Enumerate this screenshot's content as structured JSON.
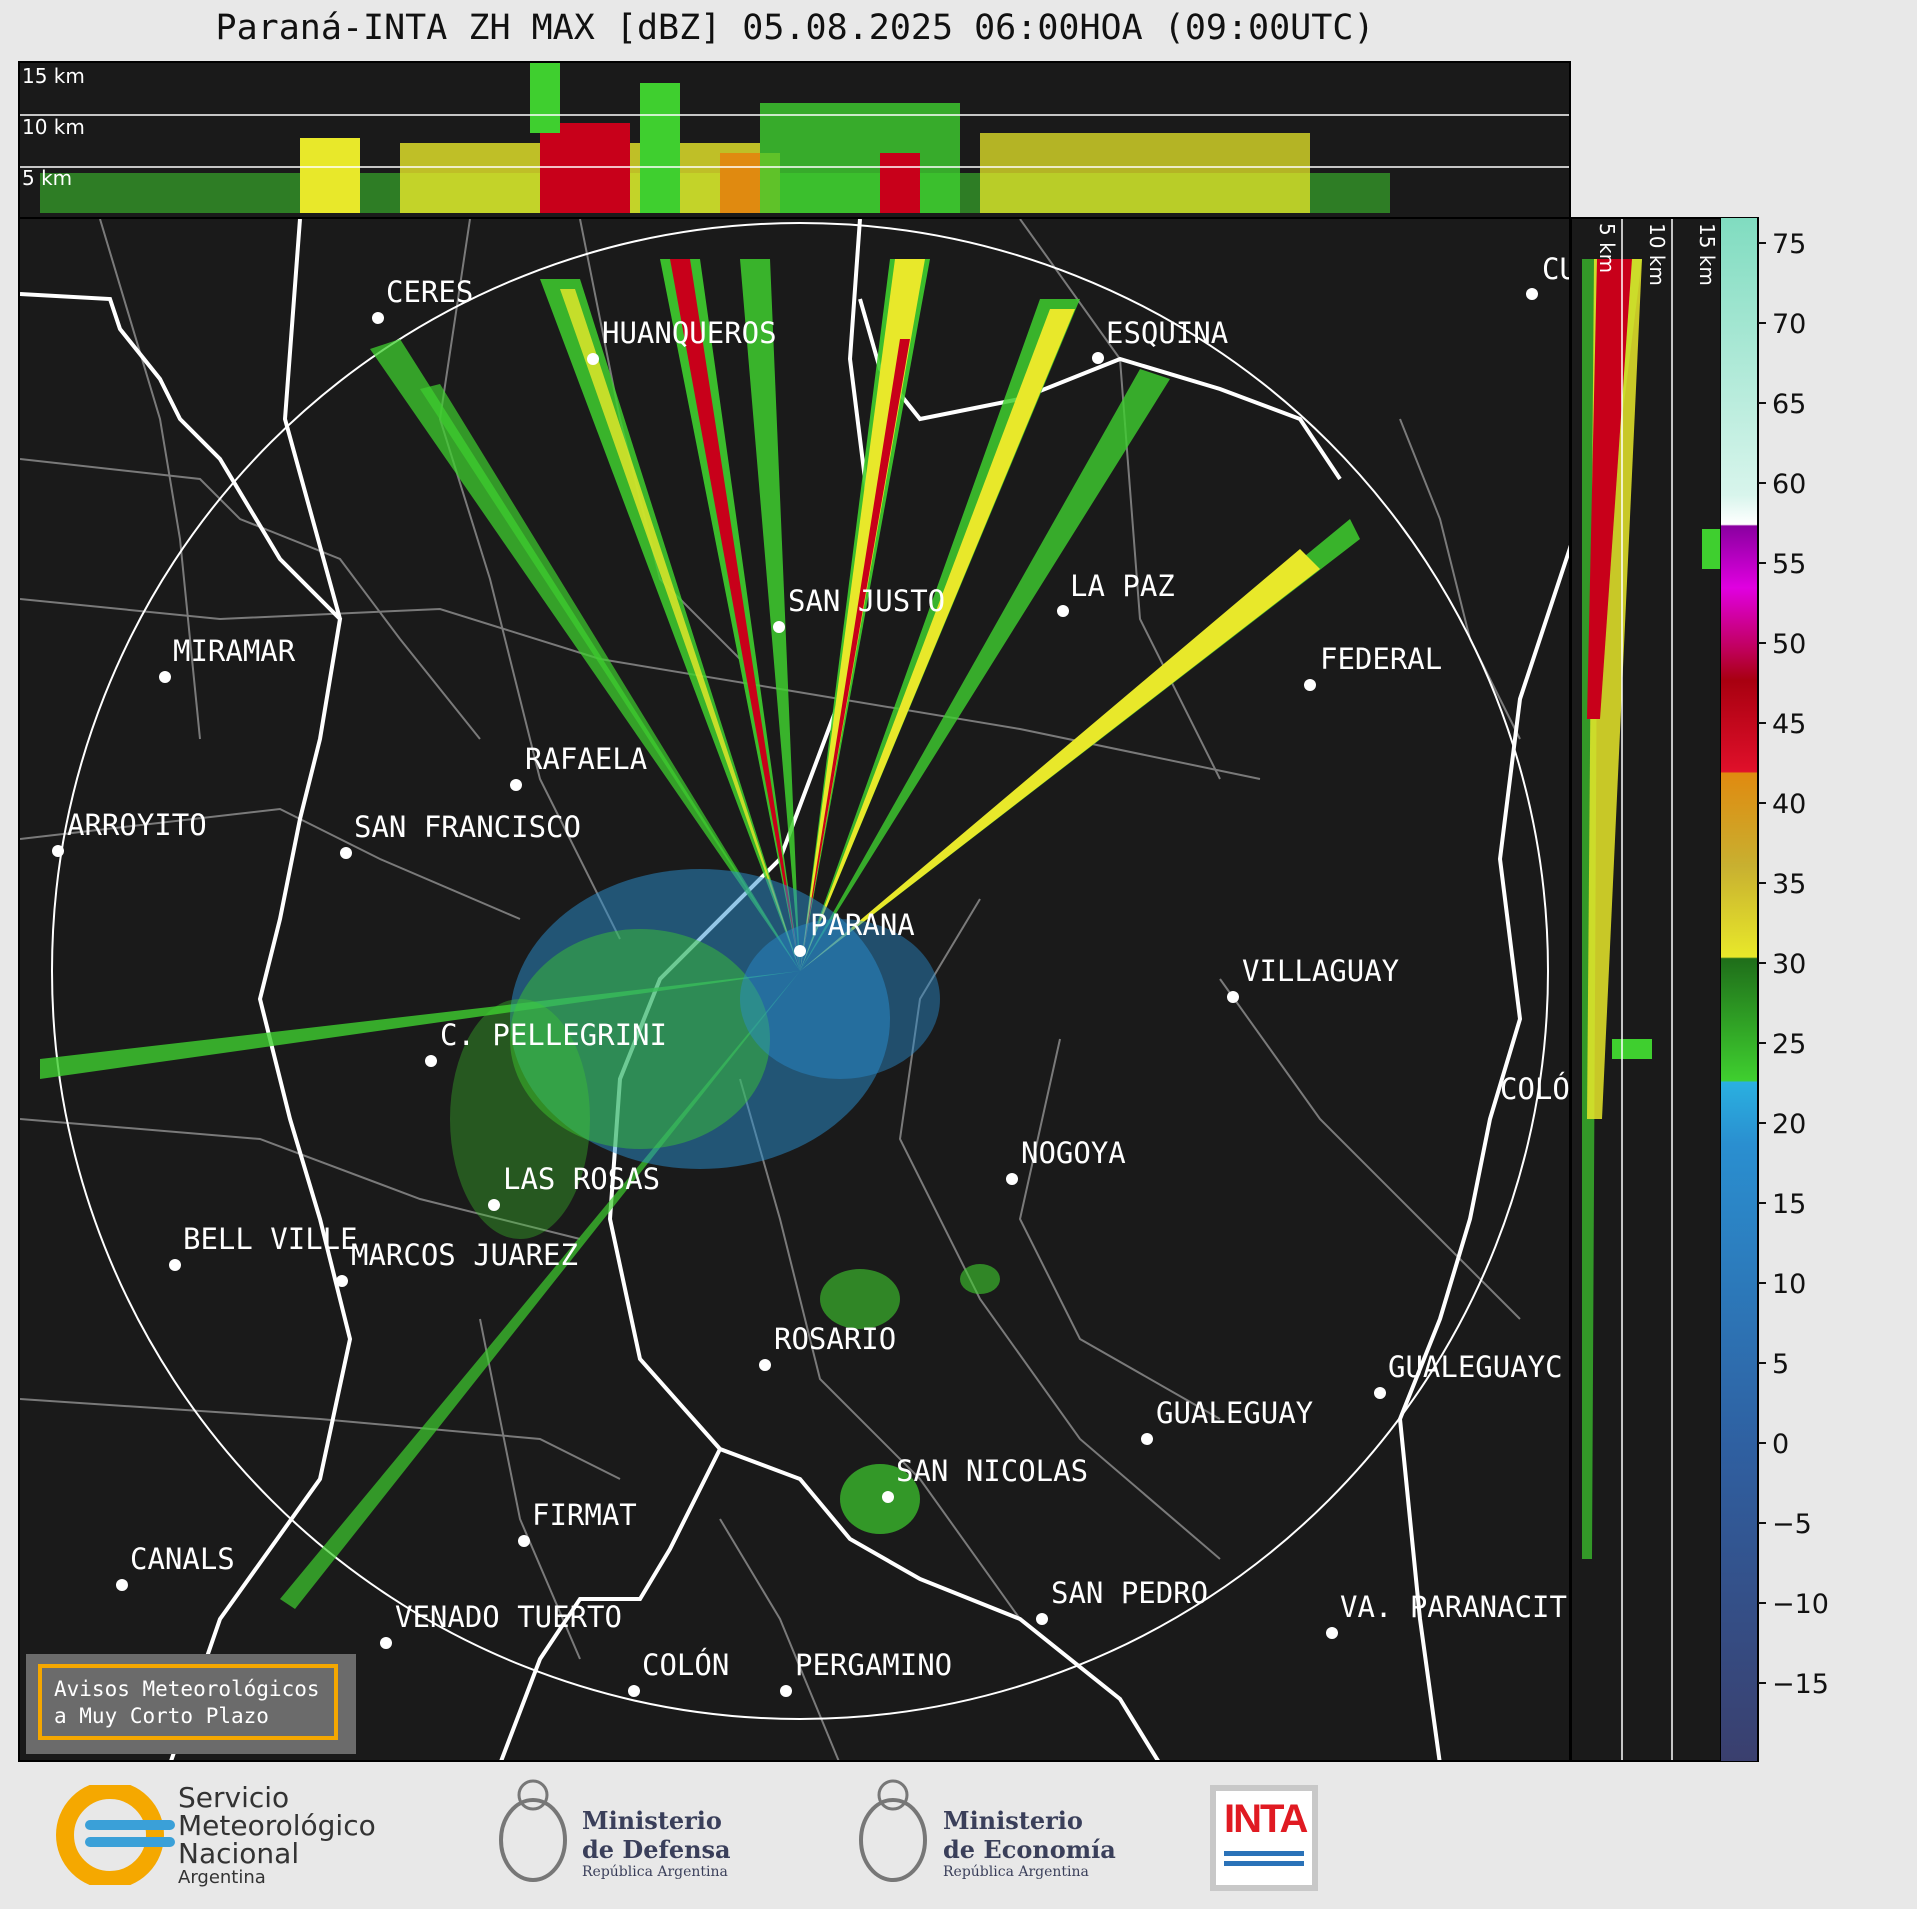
{
  "title": "Paraná-INTA ZH MAX [dBZ] 05.08.2025 06:00HOA (09:00UTC)",
  "top_panel": {
    "altitudes": [
      "15 km",
      "10 km",
      "5 km"
    ]
  },
  "side_panel": {
    "altitudes": [
      "5 km",
      "10 km",
      "15 km"
    ]
  },
  "cities": [
    {
      "name": "CERES"
    },
    {
      "name": "HUANQUEROS"
    },
    {
      "name": "ESQUINA"
    },
    {
      "name": "SAN JUSTO"
    },
    {
      "name": "LA PAZ"
    },
    {
      "name": "MIRAMAR"
    },
    {
      "name": "FEDERAL"
    },
    {
      "name": "RAFAELA"
    },
    {
      "name": "ARROYITO"
    },
    {
      "name": "SAN FRANCISCO"
    },
    {
      "name": "PARANA"
    },
    {
      "name": "VILLAGUAY"
    },
    {
      "name": "C. PELLEGRINI"
    },
    {
      "name": "COLÓ"
    },
    {
      "name": "NOGOYA"
    },
    {
      "name": "LAS ROSAS"
    },
    {
      "name": "BELL VILLE"
    },
    {
      "name": "MARCOS JUAREZ"
    },
    {
      "name": "ROSARIO"
    },
    {
      "name": "GUALEGUAYC"
    },
    {
      "name": "GUALEGUAY"
    },
    {
      "name": "SAN NICOLAS"
    },
    {
      "name": "FIRMAT"
    },
    {
      "name": "CANALS"
    },
    {
      "name": "SAN PEDRO"
    },
    {
      "name": "VA. PARANACIT"
    },
    {
      "name": "VENADO TUERTO"
    },
    {
      "name": "COLÓN"
    },
    {
      "name": "PERGAMINO"
    },
    {
      "name": "CU"
    }
  ],
  "colorbar": {
    "ticks": [
      "75",
      "70",
      "65",
      "60",
      "55",
      "50",
      "45",
      "40",
      "35",
      "30",
      "25",
      "20",
      "15",
      "10",
      "5",
      "0",
      "−5",
      "−10",
      "−15"
    ],
    "colors": {
      "reflectivity_low": "#3a3f6e",
      "reflectivity_blue": "#2a8fd0",
      "reflectivity_green": "#3fcf2f",
      "reflectivity_darkgreen": "#1f6e1a",
      "reflectivity_yellow": "#e8e82a",
      "reflectivity_orange": "#e08a10",
      "reflectivity_red": "#c8001a",
      "reflectivity_magenta": "#e000e0",
      "reflectivity_white": "#ffffff",
      "reflectivity_aqua": "#80dcc0"
    }
  },
  "warning_box": {
    "line1": "Avisos Meteorológicos",
    "line2": "a Muy Corto Plazo"
  },
  "logos": {
    "smn_line1": "Servicio",
    "smn_line2": "Meteorológico",
    "smn_line3": "Nacional",
    "smn_line4": "Argentina",
    "defensa_line1": "Ministerio",
    "defensa_line2": "de Defensa",
    "defensa_line3": "República Argentina",
    "economia_line1": "Ministerio",
    "economia_line2": "de Economía",
    "economia_line3": "República Argentina",
    "inta": "INTA"
  }
}
